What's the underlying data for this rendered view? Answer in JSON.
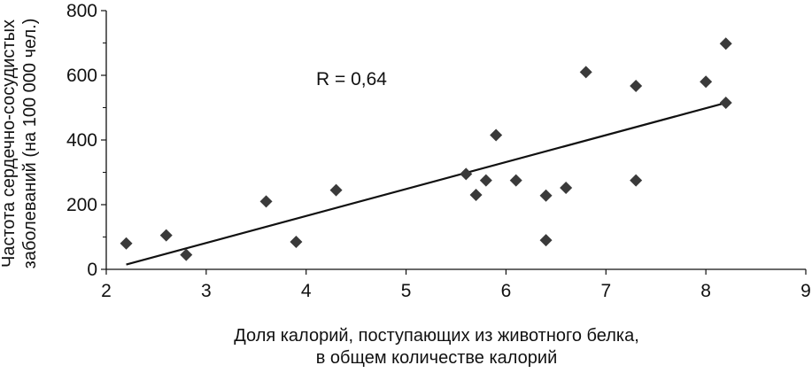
{
  "chart_data": {
    "type": "scatter",
    "title": "",
    "xlabel_lines": [
      "Доля калорий, поступающих из животного белка,",
      "в общем количестве калорий"
    ],
    "ylabel_lines": [
      "Частота сердечно-сосудистых",
      "заболеваний (на 100 000 чел.)"
    ],
    "xlim": [
      2,
      9
    ],
    "ylim": [
      0,
      800
    ],
    "xticks": [
      2,
      3,
      4,
      5,
      6,
      7,
      8,
      9
    ],
    "yticks": [
      0,
      200,
      400,
      600,
      800
    ],
    "grid": false,
    "legend": "none",
    "marker": "diamond",
    "marker_color": "#3a3a3a",
    "line_color": "#111111",
    "annotation": {
      "text": "R = 0,64",
      "x": 4.1,
      "y": 570
    },
    "points": [
      {
        "x": 2.2,
        "y": 80
      },
      {
        "x": 2.6,
        "y": 105
      },
      {
        "x": 2.8,
        "y": 45
      },
      {
        "x": 3.6,
        "y": 210
      },
      {
        "x": 3.9,
        "y": 85
      },
      {
        "x": 4.3,
        "y": 245
      },
      {
        "x": 5.6,
        "y": 295
      },
      {
        "x": 5.7,
        "y": 230
      },
      {
        "x": 5.8,
        "y": 275
      },
      {
        "x": 5.9,
        "y": 415
      },
      {
        "x": 6.1,
        "y": 275
      },
      {
        "x": 6.4,
        "y": 228
      },
      {
        "x": 6.4,
        "y": 90
      },
      {
        "x": 6.6,
        "y": 252
      },
      {
        "x": 6.8,
        "y": 610
      },
      {
        "x": 7.3,
        "y": 567
      },
      {
        "x": 7.3,
        "y": 275
      },
      {
        "x": 8.0,
        "y": 580
      },
      {
        "x": 8.2,
        "y": 698
      },
      {
        "x": 8.2,
        "y": 515
      }
    ],
    "trendline": {
      "x": [
        2.2,
        8.2
      ],
      "y": [
        15,
        515
      ]
    }
  }
}
